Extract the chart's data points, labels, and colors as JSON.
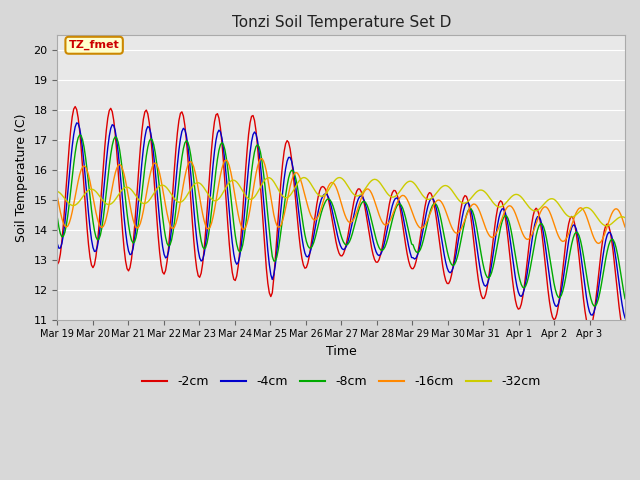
{
  "title": "Tonzi Soil Temperature Set D",
  "xlabel": "Time",
  "ylabel": "Soil Temperature (C)",
  "ylim": [
    11.0,
    20.5
  ],
  "yticks": [
    11.0,
    12.0,
    13.0,
    14.0,
    15.0,
    16.0,
    17.0,
    18.0,
    19.0,
    20.0
  ],
  "fig_bg_color": "#d8d8d8",
  "plot_bg": "#e8e8e8",
  "grid_color": "#ffffff",
  "series_colors": [
    "#dd0000",
    "#0000cc",
    "#00aa00",
    "#ff8800",
    "#cccc00"
  ],
  "series_labels": [
    "-2cm",
    "-4cm",
    "-8cm",
    "-16cm",
    "-32cm"
  ],
  "annotation_text": "TZ_fmet",
  "annotation_bg": "#ffffcc",
  "annotation_border": "#cc8800",
  "tick_labels": [
    "Mar 19",
    "Mar 20",
    "Mar 21",
    "Mar 22",
    "Mar 23",
    "Mar 24",
    "Mar 25",
    "Mar 26",
    "Mar 27",
    "Mar 28",
    "Mar 29",
    "Mar 30",
    "Mar 31",
    "Apr 1",
    "Apr 2",
    "Apr 3"
  ],
  "linewidth": 1.0
}
